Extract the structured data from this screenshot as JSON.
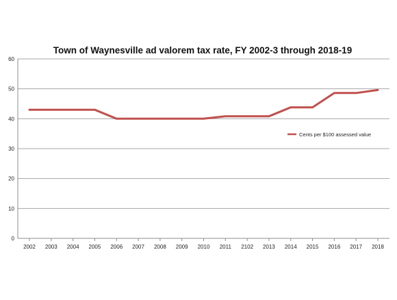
{
  "chart_data": {
    "type": "line",
    "title": "Town of Waynesville ad valorem tax rate, FY 2002-3 through 2018-19",
    "xlabel": "",
    "ylabel": "",
    "categories": [
      "2002",
      "2003",
      "2004",
      "2005",
      "2006",
      "2007",
      "2008",
      "2009",
      "2010",
      "2011",
      "2102",
      "2013",
      "2014",
      "2015",
      "2016",
      "2017",
      "2018"
    ],
    "series": [
      {
        "name": "Cents per $100 assessed value",
        "color": "#c0504d",
        "values": [
          43,
          43,
          43,
          43,
          40,
          40,
          40,
          40,
          40,
          40.8,
          40.8,
          40.8,
          43.8,
          43.8,
          48.6,
          48.6,
          49.6
        ]
      }
    ],
    "ylim": [
      0,
      60
    ],
    "yticks": [
      0,
      10,
      20,
      30,
      40,
      50,
      60
    ],
    "grid": true,
    "legend_position": "right",
    "colors": {
      "gridline": "#a6a6a6",
      "axis": "#8c8c8c",
      "text": "#222222"
    }
  }
}
